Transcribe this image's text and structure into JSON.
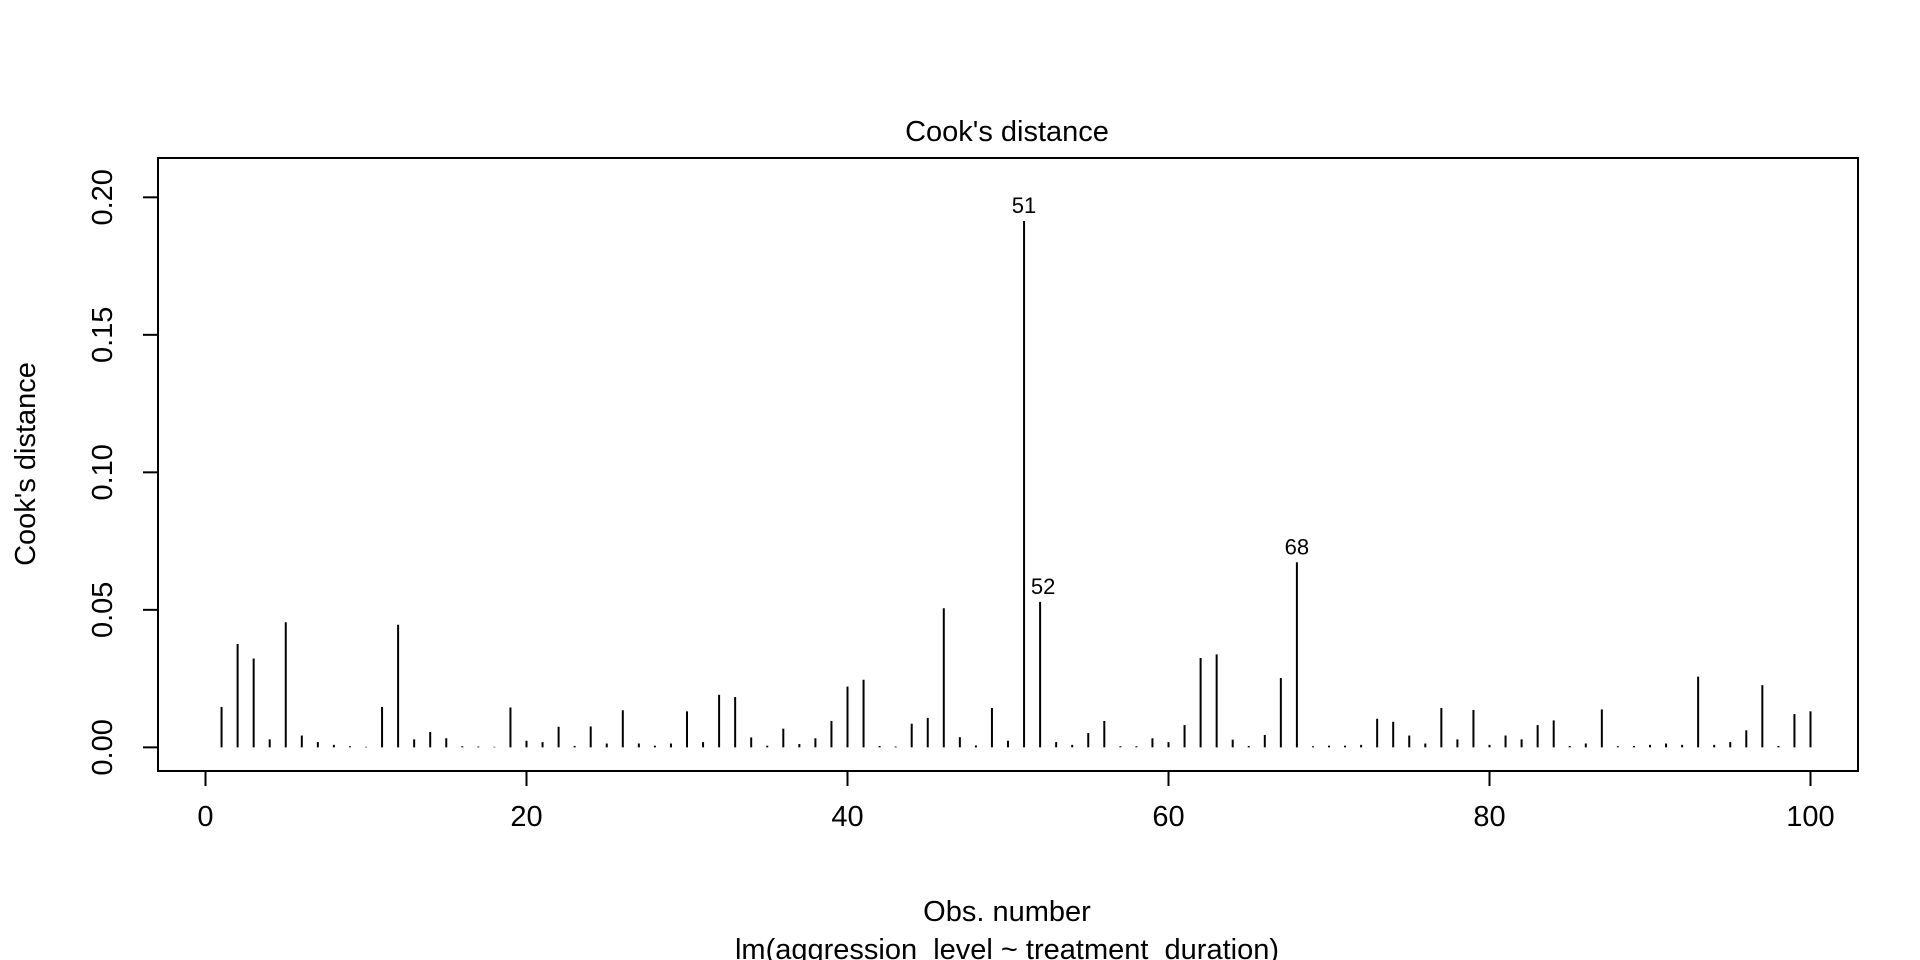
{
  "chart_data": {
    "type": "bar",
    "title": "Cook's distance",
    "xlabel": "Obs. number",
    "subtitle": "lm(aggression_level ~ treatment_duration)",
    "ylabel": "Cook's distance",
    "xlim": [
      -2.96,
      102.96
    ],
    "ylim": [
      -0.0086,
      0.2143
    ],
    "xticks": [
      0,
      20,
      40,
      60,
      80,
      100
    ],
    "xtick_labels": [
      "0",
      "20",
      "40",
      "60",
      "80",
      "100"
    ],
    "yticks": [
      0.0,
      0.05,
      0.1,
      0.15,
      0.2
    ],
    "ytick_labels": [
      "0.00",
      "0.05",
      "0.10",
      "0.15",
      "0.20"
    ],
    "grid": false,
    "x": [
      1,
      2,
      3,
      4,
      5,
      6,
      7,
      8,
      9,
      10,
      11,
      12,
      13,
      14,
      15,
      16,
      17,
      18,
      19,
      20,
      21,
      22,
      23,
      24,
      25,
      26,
      27,
      28,
      29,
      30,
      31,
      32,
      33,
      34,
      35,
      36,
      37,
      38,
      39,
      40,
      41,
      42,
      43,
      44,
      45,
      46,
      47,
      48,
      49,
      50,
      51,
      52,
      53,
      54,
      55,
      56,
      57,
      58,
      59,
      60,
      61,
      62,
      63,
      64,
      65,
      66,
      67,
      68,
      69,
      70,
      71,
      72,
      73,
      74,
      75,
      76,
      77,
      78,
      79,
      80,
      81,
      82,
      83,
      84,
      85,
      86,
      87,
      88,
      89,
      90,
      91,
      92,
      93,
      94,
      95,
      96,
      97,
      98,
      99,
      100
    ],
    "values": [
      0.0147,
      0.0376,
      0.0323,
      0.0029,
      0.0455,
      0.0043,
      0.0019,
      0.0009,
      0.0004,
      0.0002,
      0.0147,
      0.0446,
      0.0029,
      0.0056,
      0.0033,
      0.0004,
      0.0003,
      0.0002,
      0.0145,
      0.0024,
      0.0019,
      0.0075,
      0.0005,
      0.0076,
      0.0014,
      0.0135,
      0.0014,
      0.0006,
      0.0014,
      0.0131,
      0.0019,
      0.0191,
      0.0183,
      0.0036,
      0.0006,
      0.0068,
      0.0012,
      0.0033,
      0.0096,
      0.0221,
      0.0246,
      0.0005,
      0.0003,
      0.0086,
      0.0107,
      0.0506,
      0.0037,
      0.0007,
      0.0143,
      0.0024,
      0.1914,
      0.0529,
      0.0019,
      0.0009,
      0.0052,
      0.0096,
      0.0004,
      0.0004,
      0.0033,
      0.0019,
      0.0081,
      0.0325,
      0.0338,
      0.0028,
      0.0005,
      0.0045,
      0.0252,
      0.0673,
      0.0004,
      0.0006,
      0.0006,
      0.0009,
      0.0104,
      0.0093,
      0.0043,
      0.0014,
      0.0143,
      0.0029,
      0.0136,
      0.0009,
      0.0043,
      0.0029,
      0.0081,
      0.0098,
      0.0005,
      0.0014,
      0.0138,
      0.0004,
      0.0005,
      0.0009,
      0.0014,
      0.0009,
      0.0257,
      0.0009,
      0.0019,
      0.0062,
      0.0226,
      0.0005,
      0.0121,
      0.0131
    ],
    "annotations": [
      {
        "x": 51,
        "y": 0.1914,
        "text": "51"
      },
      {
        "x": 52,
        "y": 0.0529,
        "text": "52"
      },
      {
        "x": 68,
        "y": 0.0673,
        "text": "68"
      }
    ]
  }
}
